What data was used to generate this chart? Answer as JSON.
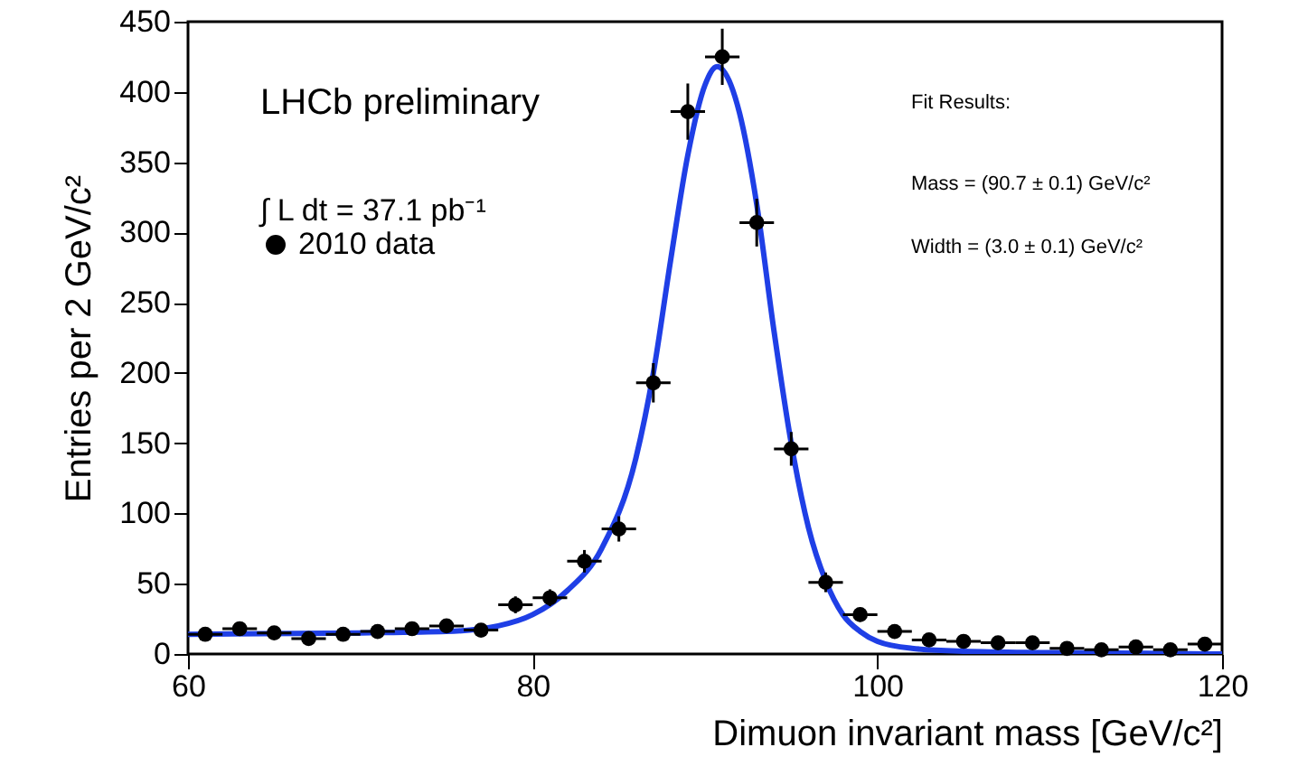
{
  "chart_data": {
    "type": "scatter",
    "xlabel": "Dimuon invariant mass [GeV/c²]",
    "ylabel": "Entries per 2 GeV/c²",
    "annotations": [
      "LHCb preliminary",
      "∫ L dt = 37.1  pb⁻¹",
      "Fit Results:",
      "Mass = (90.7 ± 0.1) GeV/c²",
      "Width = (3.0 ± 0.1) GeV/c²"
    ],
    "xlim": [
      60,
      120
    ],
    "xticks": [
      60,
      80,
      100,
      120
    ],
    "ylim": [
      0,
      450
    ],
    "yticks": [
      0,
      50,
      100,
      150,
      200,
      250,
      300,
      350,
      400,
      450
    ],
    "grid": false,
    "legend": "top left",
    "series": [
      {
        "name": "2010 data",
        "marker": "circle",
        "color": "#000000",
        "x": [
          61,
          63,
          65,
          67,
          69,
          71,
          73,
          75,
          77,
          79,
          81,
          83,
          85,
          87,
          89,
          91,
          93,
          95,
          97,
          99,
          101,
          103,
          105,
          107,
          109,
          111,
          113,
          115,
          117,
          119
        ],
        "values": [
          14,
          18,
          15,
          11,
          14,
          16,
          18,
          20,
          17,
          35,
          40,
          66,
          89,
          193,
          386,
          425,
          307,
          146,
          51,
          28,
          16,
          10,
          9,
          8,
          8,
          4,
          3,
          5,
          3,
          7
        ],
        "errors": [
          4,
          4,
          4,
          3,
          4,
          4,
          4,
          4,
          4,
          6,
          6,
          8,
          9,
          14,
          20,
          20,
          17,
          12,
          7,
          5,
          4,
          3,
          3,
          3,
          3,
          2,
          2,
          2,
          2,
          3
        ],
        "xerrors": [
          1,
          1,
          1,
          1,
          1,
          1,
          1,
          1,
          1,
          1,
          1,
          1,
          1,
          1,
          1,
          1,
          1,
          1,
          1,
          1,
          1,
          1,
          1,
          1,
          1,
          1,
          1,
          1,
          1,
          1
        ]
      },
      {
        "type": "line",
        "line_style": "solid",
        "color": "#1f3fe6",
        "x": [
          60,
          70,
          75,
          78,
          80,
          82,
          84,
          86,
          87,
          88,
          89,
          90,
          90.7,
          91.5,
          92,
          93,
          94,
          95,
          96,
          97,
          98,
          99,
          100,
          102,
          105,
          110,
          120
        ],
        "values": [
          14,
          15,
          16,
          20,
          28,
          45,
          75,
          140,
          200,
          280,
          355,
          405,
          418,
          405,
          385,
          320,
          230,
          150,
          90,
          52,
          28,
          16,
          9,
          4,
          2,
          1,
          0
        ]
      }
    ]
  }
}
